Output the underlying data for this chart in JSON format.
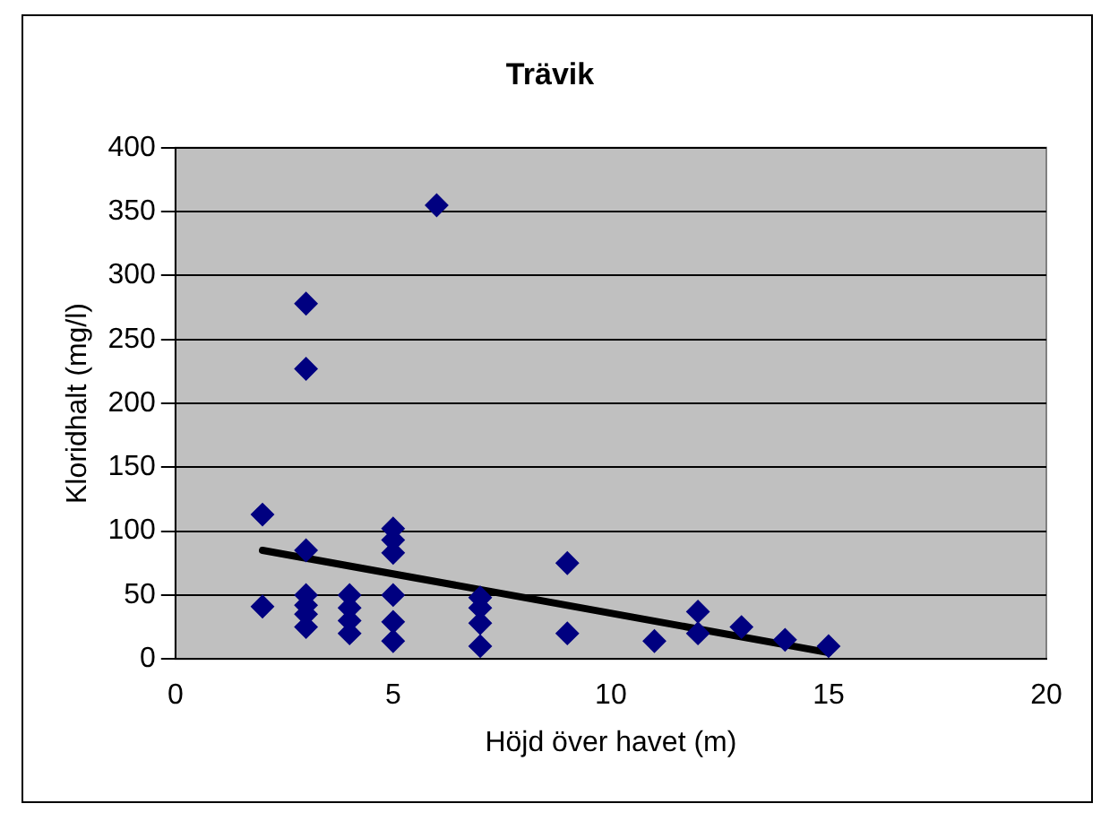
{
  "chart_data": {
    "type": "scatter",
    "title": "Trävik",
    "xlabel": "Höjd över havet (m)",
    "ylabel": "Kloridhalt (mg/l)",
    "xlim": [
      0,
      20
    ],
    "xticks": [
      0,
      5,
      10,
      15,
      20
    ],
    "ylim": [
      0,
      400
    ],
    "yticks": [
      0,
      50,
      100,
      150,
      200,
      250,
      300,
      350,
      400
    ],
    "grid": "y",
    "legend": false,
    "marker": "diamond",
    "series": [
      {
        "color": "#000080",
        "x": [
          2,
          2,
          3,
          3,
          3,
          3,
          3,
          3,
          3,
          4,
          4,
          4,
          4,
          5,
          5,
          5,
          5,
          5,
          5,
          6,
          7,
          7,
          7,
          7,
          9,
          9,
          11,
          12,
          12,
          13,
          14,
          15
        ],
        "values": [
          113,
          41,
          278,
          227,
          85,
          50,
          42,
          35,
          25,
          50,
          40,
          30,
          20,
          102,
          93,
          83,
          50,
          29,
          14,
          355,
          48,
          40,
          28,
          10,
          75,
          20,
          14,
          37,
          20,
          25,
          15,
          10
        ]
      },
      {
        "type": "line",
        "color": "#000000",
        "marker": "none",
        "x": [
          2,
          15
        ],
        "values": [
          85,
          5
        ]
      }
    ]
  }
}
